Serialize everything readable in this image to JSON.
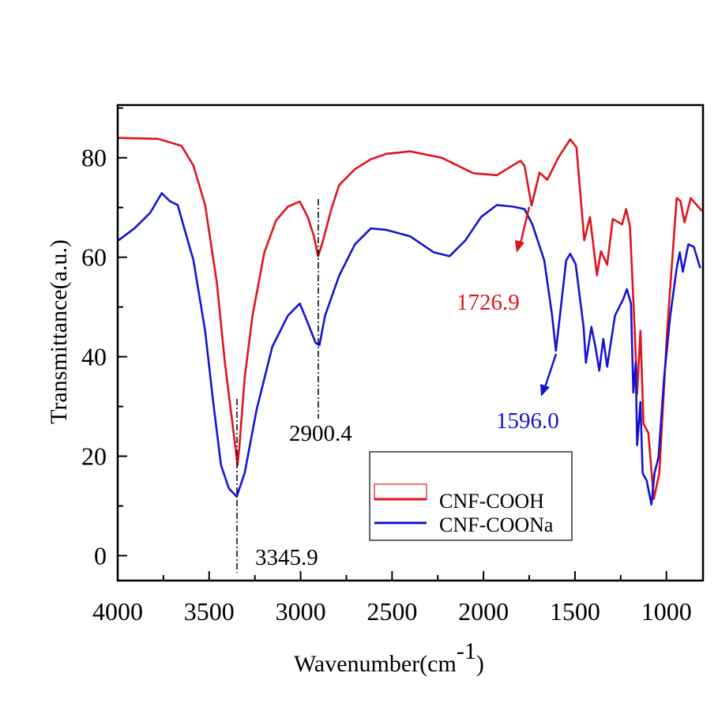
{
  "chart_data": {
    "type": "line",
    "title": "",
    "xlabel": "Wavenumber(cm",
    "xlabel_sup": "-1",
    "xlabel_close": ")",
    "ylabel": "Transmittance(a.u.)",
    "xlim": [
      4000,
      800
    ],
    "ylim": [
      -5,
      90.6
    ],
    "x_reversed": true,
    "grid": false,
    "legend_placement": "lower-center",
    "x_ticks": [
      4000,
      3500,
      3000,
      2500,
      2000,
      1500,
      1000
    ],
    "x_tick_labels": [
      "4000",
      "3500",
      "3000",
      "2500",
      "2000",
      "1500",
      "1000"
    ],
    "y_ticks": [
      0,
      20,
      40,
      60,
      80
    ],
    "y_tick_labels": [
      "0",
      "20",
      "40",
      "60",
      "80"
    ],
    "series": [
      {
        "name": "CNF-COOH",
        "color": "#e0141e",
        "x": [
          3996,
          3780,
          3651,
          3586,
          3522,
          3457,
          3414,
          3371,
          3345,
          3336,
          3306,
          3263,
          3198,
          3134,
          3069,
          3004,
          2961,
          2927,
          2905,
          2883,
          2832,
          2789,
          2703,
          2616,
          2530,
          2401,
          2229,
          2056,
          1927,
          1798,
          1776,
          1737,
          1694,
          1651,
          1591,
          1526,
          1492,
          1449,
          1418,
          1380,
          1358,
          1324,
          1293,
          1242,
          1220,
          1199,
          1173,
          1160,
          1142,
          1125,
          1099,
          1069,
          1039,
          996,
          944,
          923,
          901,
          867,
          806
        ],
        "y": [
          84.0,
          83.8,
          82.4,
          78.4,
          70.5,
          54.7,
          38.8,
          26.1,
          18.2,
          21.4,
          35.7,
          48.3,
          61.0,
          67.4,
          70.2,
          71.2,
          68.1,
          64.2,
          60.2,
          62.6,
          69.7,
          74.5,
          77.7,
          79.7,
          80.8,
          81.3,
          80.0,
          76.9,
          76.5,
          79.4,
          78.4,
          70.4,
          77.0,
          75.6,
          80.0,
          83.7,
          82.1,
          63.4,
          68.1,
          56.4,
          61.2,
          58.5,
          67.7,
          66.6,
          69.7,
          66.1,
          45.2,
          32.5,
          45.2,
          26.5,
          24.7,
          11.4,
          16.6,
          45.2,
          71.9,
          71.3,
          67.0,
          71.9,
          69.3
        ]
      },
      {
        "name": "CNF-COONa",
        "color": "#1414d2",
        "x": [
          3996,
          3909,
          3823,
          3759,
          3716,
          3672,
          3642,
          3586,
          3522,
          3478,
          3435,
          3392,
          3349,
          3306,
          3241,
          3155,
          3069,
          3004,
          2961,
          2918,
          2897,
          2866,
          2789,
          2703,
          2616,
          2530,
          2401,
          2272,
          2186,
          2099,
          2013,
          1927,
          1841,
          1776,
          1733,
          1668,
          1625,
          1604,
          1582,
          1548,
          1526,
          1496,
          1453,
          1440,
          1410,
          1388,
          1367,
          1345,
          1324,
          1281,
          1237,
          1216,
          1194,
          1181,
          1168,
          1160,
          1142,
          1130,
          1108,
          1082,
          1065,
          1043,
          1013,
          979,
          944,
          927,
          910,
          880,
          850,
          815
        ],
        "y": [
          63.4,
          65.8,
          68.9,
          72.9,
          71.3,
          70.5,
          66.6,
          59.4,
          45.2,
          30.9,
          18.2,
          13.5,
          11.9,
          16.6,
          29.3,
          42.0,
          48.3,
          50.7,
          46.8,
          42.8,
          42.3,
          48.3,
          56.3,
          62.6,
          65.8,
          65.5,
          64.2,
          61.0,
          60.2,
          63.4,
          68.1,
          70.5,
          70.2,
          69.7,
          66.6,
          59.4,
          48.3,
          41.2,
          48.3,
          59.4,
          60.7,
          58.6,
          46.0,
          38.8,
          46.0,
          42.0,
          37.2,
          43.6,
          38.0,
          48.3,
          51.5,
          53.6,
          50.7,
          32.8,
          38.8,
          22.2,
          30.9,
          16.6,
          15.1,
          10.3,
          16.6,
          19.8,
          35.7,
          48.3,
          57.8,
          61.0,
          57.1,
          62.6,
          62.1,
          57.8
        ]
      }
    ],
    "annotations": [
      {
        "text": "3345.9",
        "x": 3345.9,
        "color": "#000000",
        "style": "dash-dot"
      },
      {
        "text": "2900.4",
        "x": 2900.4,
        "color": "#000000",
        "style": "dash-dot"
      },
      {
        "text": "1726.9",
        "x": 1726.9,
        "color": "#e0141e",
        "style": "arrow"
      },
      {
        "text": "1596.0",
        "x": 1596.0,
        "color": "#1414d2",
        "style": "arrow"
      }
    ]
  }
}
